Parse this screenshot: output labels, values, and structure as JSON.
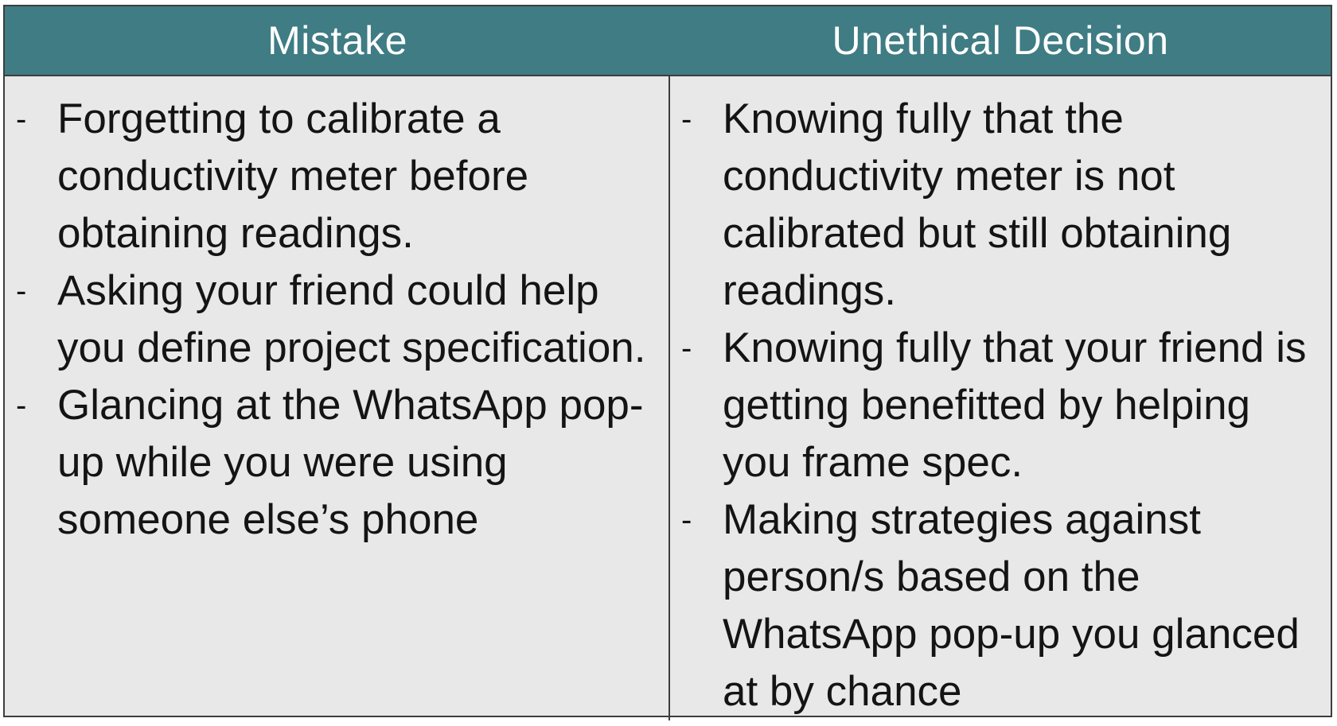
{
  "table": {
    "headers": {
      "mistake": "Mistake",
      "unethical": "Unethical Decision"
    },
    "bullet_marker": "-",
    "mistake_items": [
      "Forgetting to calibrate a conductivity meter before obtaining readings.",
      "Asking your friend could help you define project specification.",
      "Glancing at the WhatsApp pop-up while you were using someone else’s phone"
    ],
    "unethical_items": [
      "Knowing fully that the conductivity meter is not calibrated but still obtaining readings.",
      "Knowing fully that your friend is getting benefitted by helping you frame spec.",
      "Making strategies against person/s based on the WhatsApp pop-up you glanced at by chance"
    ]
  },
  "colors": {
    "header_bg": "#3f7c84",
    "body_bg": "#e8e8e8",
    "border": "#3d3d3d"
  }
}
